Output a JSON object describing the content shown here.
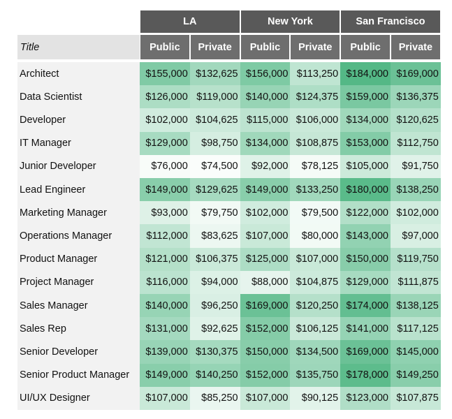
{
  "table": {
    "groups": [
      "LA",
      "New York",
      "San Francisco"
    ],
    "subheaders": [
      "Public",
      "Private",
      "Public",
      "Private",
      "Public",
      "Private"
    ],
    "title_header": "Title",
    "rows": [
      [
        "Architect",
        "$155,000",
        "$132,625",
        "$156,000",
        "$113,250",
        "$184,000",
        "$169,000"
      ],
      [
        "Data Scientist",
        "$126,000",
        "$119,000",
        "$140,000",
        "$124,375",
        "$159,000",
        "$136,375"
      ],
      [
        "Developer",
        "$102,000",
        "$104,625",
        "$115,000",
        "$106,000",
        "$134,000",
        "$120,625"
      ],
      [
        "IT Manager",
        "$129,000",
        "$98,750",
        "$134,000",
        "$108,875",
        "$153,000",
        "$112,750"
      ],
      [
        "Junior Developer",
        "$76,000",
        "$74,500",
        "$92,000",
        "$78,125",
        "$105,000",
        "$91,750"
      ],
      [
        "Lead Engineer",
        "$149,000",
        "$129,625",
        "$149,000",
        "$133,250",
        "$180,000",
        "$138,250"
      ],
      [
        "Marketing Manager",
        "$93,000",
        "$79,750",
        "$102,000",
        "$79,500",
        "$122,000",
        "$102,000"
      ],
      [
        "Operations Manager",
        "$112,000",
        "$83,625",
        "$107,000",
        "$80,000",
        "$143,000",
        "$97,000"
      ],
      [
        "Product Manager",
        "$121,000",
        "$106,375",
        "$125,000",
        "$107,000",
        "$150,000",
        "$119,750"
      ],
      [
        "Project Manager",
        "$116,000",
        "$94,000",
        "$88,000",
        "$104,875",
        "$129,000",
        "$111,875"
      ],
      [
        "Sales Manager",
        "$140,000",
        "$96,250",
        "$169,000",
        "$120,250",
        "$174,000",
        "$138,125"
      ],
      [
        "Sales Rep",
        "$131,000",
        "$92,625",
        "$152,000",
        "$106,125",
        "$141,000",
        "$117,125"
      ],
      [
        "Senior Developer",
        "$139,000",
        "$130,375",
        "$150,000",
        "$134,500",
        "$169,000",
        "$145,000"
      ],
      [
        "Senior Product Manager",
        "$149,000",
        "$140,250",
        "$152,000",
        "$135,750",
        "$178,000",
        "$149,250"
      ],
      [
        "UI/UX Designer",
        "$107,000",
        "$85,250",
        "$107,000",
        "$90,125",
        "$123,000",
        "$107,875"
      ]
    ]
  }
}
